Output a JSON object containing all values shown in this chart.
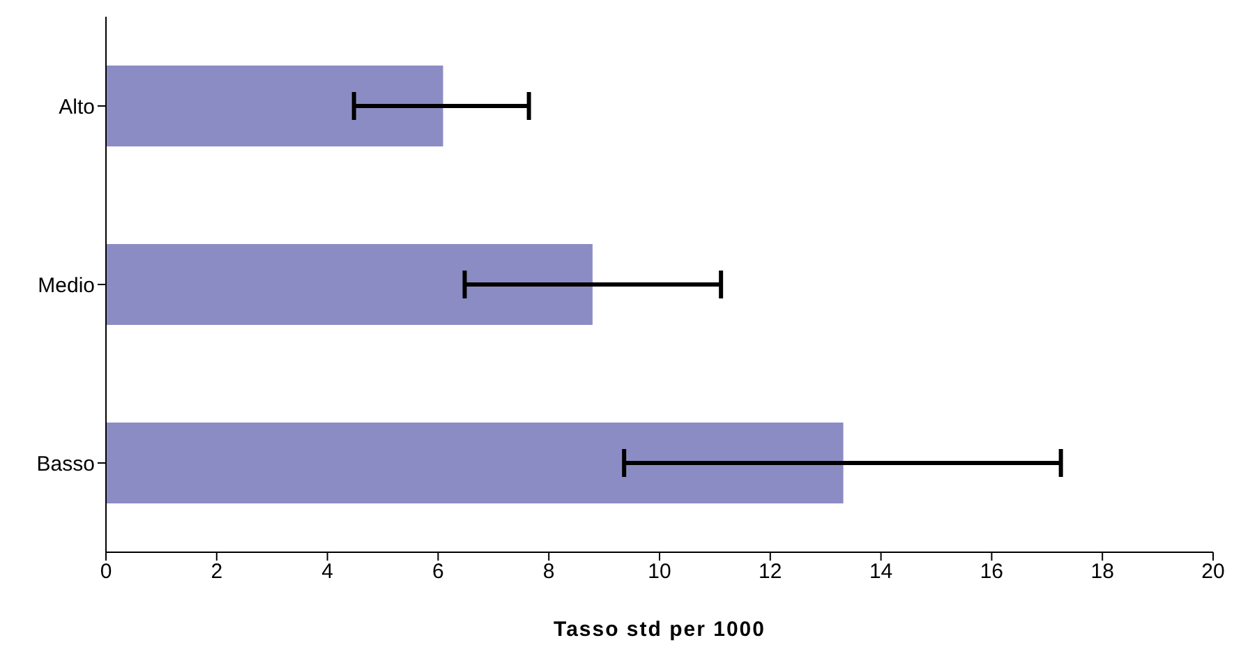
{
  "chart_data": {
    "type": "bar",
    "orientation": "horizontal",
    "xlabel": "Tasso std per 1000",
    "categories": [
      "Alto",
      "Medio",
      "Basso"
    ],
    "values": [
      6.09,
      8.79,
      13.32
    ],
    "color": "#8c8cc4",
    "errors": [
      [
        4.48,
        7.64
      ],
      [
        6.48,
        11.11
      ],
      [
        9.36,
        17.25
      ]
    ],
    "xlim": [
      0,
      20
    ],
    "xticks": [
      0,
      2,
      4,
      6,
      8,
      10,
      12,
      14,
      16,
      18,
      20
    ],
    "grid": false,
    "legend": false
  }
}
